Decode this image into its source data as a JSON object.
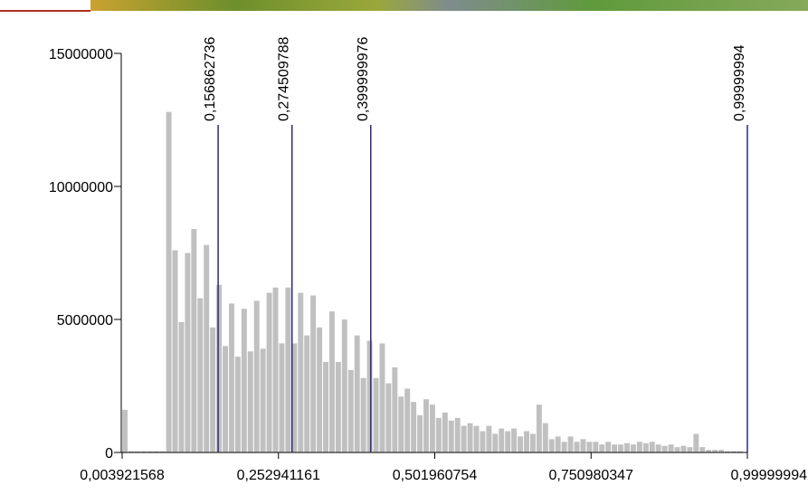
{
  "chart_data": {
    "type": "histogram",
    "bins": [
      0.004,
      0.014,
      0.024,
      0.034,
      0.044,
      0.054,
      0.064,
      0.074,
      0.084,
      0.094,
      0.104,
      0.114,
      0.124,
      0.134,
      0.144,
      0.154,
      0.164,
      0.174,
      0.184,
      0.194,
      0.204,
      0.214,
      0.224,
      0.234,
      0.244,
      0.254,
      0.264,
      0.274,
      0.284,
      0.294,
      0.304,
      0.314,
      0.324,
      0.334,
      0.344,
      0.354,
      0.364,
      0.374,
      0.384,
      0.394,
      0.404,
      0.414,
      0.424,
      0.434,
      0.444,
      0.454,
      0.464,
      0.474,
      0.484,
      0.494,
      0.504,
      0.514,
      0.524,
      0.534,
      0.544,
      0.554,
      0.564,
      0.574,
      0.584,
      0.594,
      0.604,
      0.614,
      0.624,
      0.634,
      0.644,
      0.654,
      0.664,
      0.674,
      0.684,
      0.694,
      0.704,
      0.714,
      0.724,
      0.734,
      0.744,
      0.754,
      0.764,
      0.774,
      0.784,
      0.794,
      0.804,
      0.814,
      0.824,
      0.834,
      0.844,
      0.854,
      0.864,
      0.874,
      0.884,
      0.894,
      0.904,
      0.914,
      0.924,
      0.934,
      0.944,
      0.954,
      0.964,
      0.974,
      0.984,
      0.994
    ],
    "values": [
      1600000,
      50000,
      50000,
      50000,
      50000,
      50000,
      50000,
      12800000,
      7600000,
      4900000,
      7500000,
      8400000,
      5800000,
      7800000,
      4700000,
      6300000,
      4000000,
      5600000,
      3600000,
      5400000,
      3800000,
      5700000,
      3900000,
      6000000,
      6200000,
      4100000,
      6200000,
      4100000,
      6000000,
      4400000,
      5900000,
      4700000,
      3400000,
      5300000,
      3400000,
      5000000,
      3100000,
      4400000,
      2800000,
      4200000,
      2800000,
      4100000,
      2600000,
      3200000,
      2100000,
      2400000,
      1900000,
      1400000,
      2000000,
      1800000,
      1300000,
      1500000,
      1200000,
      1300000,
      1000000,
      1100000,
      1000000,
      800000,
      1000000,
      700000,
      900000,
      800000,
      900000,
      600000,
      800000,
      700000,
      1800000,
      1100000,
      500000,
      600000,
      400000,
      600000,
      400000,
      500000,
      400000,
      400000,
      300000,
      400000,
      300000,
      300000,
      350000,
      300000,
      400000,
      350000,
      400000,
      300000,
      250000,
      300000,
      200000,
      250000,
      200000,
      700000,
      200000,
      100000,
      100000,
      100000,
      50000,
      50000,
      50000
    ],
    "color": "#c0c0c0",
    "xlim": [
      0.003921568,
      0.99999994
    ],
    "xticks": [
      {
        "value": 0.003921568,
        "label": "0,003921568"
      },
      {
        "value": 0.252941161,
        "label": "0,252941161"
      },
      {
        "value": 0.501960754,
        "label": "0,501960754"
      },
      {
        "value": 0.750980347,
        "label": "0,750980347"
      },
      {
        "value": 0.99999994,
        "label": "0,99999994"
      }
    ],
    "ylim": [
      0,
      15000000
    ],
    "yticks": [
      0,
      5000000,
      10000000,
      15000000
    ],
    "breaks": [
      {
        "value": 0.156862736,
        "label": "0,156862736"
      },
      {
        "value": 0.274509788,
        "label": "0,274509788"
      },
      {
        "value": 0.399999976,
        "label": "0,399999976"
      },
      {
        "value": 0.99999994,
        "label": "0,99999994"
      }
    ],
    "break_color": "#2b2b7a"
  }
}
